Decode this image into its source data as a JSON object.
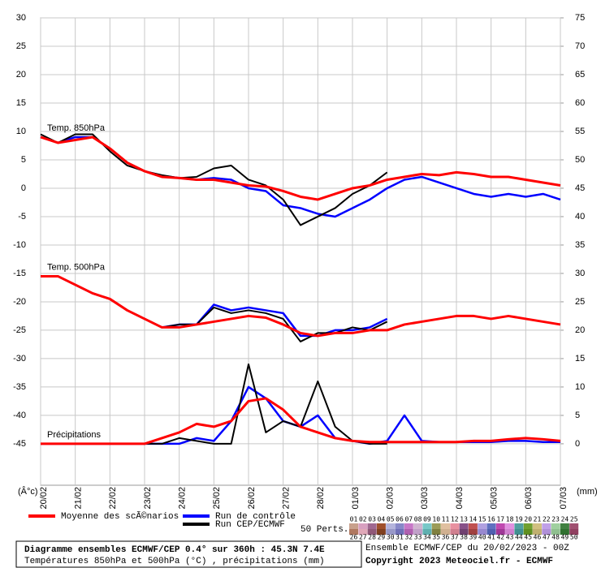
{
  "chart_data": {
    "type": "line",
    "xlim": [
      0,
      360
    ],
    "xticks": [
      {
        "value": 0,
        "label": "20/02"
      },
      {
        "value": 24,
        "label": "21/02"
      },
      {
        "value": 48,
        "label": "22/02"
      },
      {
        "value": 72,
        "label": "23/02"
      },
      {
        "value": 96,
        "label": "24/02"
      },
      {
        "value": 120,
        "label": "25/02"
      },
      {
        "value": 144,
        "label": "26/02"
      },
      {
        "value": 168,
        "label": "27/02"
      },
      {
        "value": 192,
        "label": "28/02"
      },
      {
        "value": 216,
        "label": "01/03"
      },
      {
        "value": 240,
        "label": "02/03"
      },
      {
        "value": 264,
        "label": "03/03"
      },
      {
        "value": 288,
        "label": "04/03"
      },
      {
        "value": 312,
        "label": "05/03"
      },
      {
        "value": 336,
        "label": "06/03"
      },
      {
        "value": 360,
        "label": "07/03"
      }
    ],
    "ylim": [
      -52.3,
      30
    ],
    "yticks": [
      -45,
      -40,
      -35,
      -30,
      -25,
      -20,
      -15,
      -10,
      -5,
      0,
      5,
      10,
      15,
      20,
      25,
      30
    ],
    "y2lim": [
      -7.3,
      75
    ],
    "y2ticks": [
      0,
      5,
      10,
      15,
      20,
      25,
      30,
      35,
      40,
      45,
      50,
      55,
      60,
      65,
      70,
      75
    ],
    "y_unit": "(Â°c)",
    "y2_unit": "(mm)",
    "grid": true,
    "x": [
      0,
      12,
      24,
      36,
      48,
      60,
      72,
      84,
      96,
      108,
      120,
      132,
      144,
      156,
      168,
      180,
      192,
      204,
      216,
      228,
      240,
      252,
      264,
      276,
      288,
      300,
      312,
      324,
      336,
      348,
      360
    ],
    "series": [
      {
        "name": "Moyenne des scÃ©narios",
        "color": "#ff0000"
      },
      {
        "name": "Run de contrôle",
        "color": "#0000ff"
      },
      {
        "name": "Run CEP/ECMWF",
        "color": "#000000"
      }
    ],
    "panels": [
      {
        "label": "Temp. 850hPa",
        "axis": "y",
        "values": [
          [
            9,
            8,
            8.5,
            9,
            7,
            4.5,
            3,
            2,
            1.8,
            1.5,
            1.5,
            1,
            0.5,
            0.3,
            -0.5,
            -1.5,
            -2,
            -1,
            0,
            0.5,
            1.5,
            2,
            2.5,
            2.3,
            2.8,
            2.5,
            2,
            2,
            1.5,
            1,
            0.5
          ],
          [
            9,
            8,
            9,
            9,
            7,
            4.5,
            3,
            2.2,
            1.8,
            1.5,
            1.8,
            1.5,
            0,
            -0.5,
            -3,
            -3.5,
            -4.5,
            -5,
            -3.5,
            -2,
            0,
            1.5,
            2,
            1,
            0,
            -1,
            -1.5,
            -1,
            -1.5,
            -1,
            -2
          ],
          [
            9.5,
            8,
            9.5,
            9.5,
            6.5,
            4,
            3,
            2.3,
            1.8,
            2,
            3.5,
            4,
            1.5,
            0.5,
            -2,
            -6.5,
            -5,
            -3.5,
            -1,
            0.5,
            2.8,
            null,
            null,
            null,
            null,
            null,
            null,
            null,
            null,
            null,
            null
          ]
        ]
      },
      {
        "label": "Temp. 500hPa",
        "axis": "y",
        "values": [
          [
            -15.5,
            -15.5,
            -17,
            -18.5,
            -19.5,
            -21.5,
            -23,
            -24.5,
            -24.5,
            -24,
            -23.5,
            -23,
            -22.5,
            -22.8,
            -24,
            -25.5,
            -26,
            -25.5,
            -25.5,
            -25,
            -25,
            -24,
            -23.5,
            -23,
            -22.5,
            -22.5,
            -23,
            -22.5,
            -23,
            -23.5,
            -24
          ],
          [
            -15.5,
            -15.5,
            -17,
            -18.5,
            -19.5,
            -21.5,
            -23,
            -24.5,
            -24,
            -24,
            -20.5,
            -21.5,
            -21,
            -21.5,
            -22,
            -26,
            -26,
            -25,
            -25,
            -24.5,
            -23,
            null,
            null,
            null,
            null,
            null,
            null,
            null,
            null,
            null,
            null
          ],
          [
            -15.5,
            -15.5,
            -17,
            -18.5,
            -19.5,
            -21.5,
            -23,
            -24.5,
            -24,
            -24,
            -21,
            -22,
            -21.5,
            -22,
            -23,
            -27,
            -25.5,
            -25.5,
            -24.5,
            -25,
            -23.5,
            null,
            null,
            null,
            null,
            null,
            null,
            null,
            null,
            null,
            null
          ]
        ]
      },
      {
        "label": "Précipitations",
        "axis": "y2",
        "values": [
          [
            0,
            0,
            0,
            0,
            0,
            0,
            0,
            1,
            2,
            3.5,
            3,
            4,
            7.5,
            8,
            6,
            3,
            2,
            1,
            0.5,
            0.3,
            0.3,
            0.3,
            0.3,
            0.3,
            0.3,
            0.5,
            0.5,
            0.8,
            1,
            0.8,
            0.5
          ],
          [
            0,
            0,
            0,
            0,
            0,
            0,
            0,
            0,
            0,
            1,
            0.5,
            4,
            10,
            8,
            4,
            3,
            5,
            1,
            0.5,
            0,
            0.5,
            5,
            0.5,
            0.3,
            0.3,
            0.3,
            0.3,
            0.5,
            0.5,
            0.3,
            0.3
          ],
          [
            0,
            0,
            0,
            0,
            0,
            0,
            0,
            0,
            1,
            0.5,
            0,
            0,
            14,
            2,
            4,
            3,
            11,
            3,
            0.5,
            0,
            0,
            null,
            null,
            null,
            null,
            null,
            null,
            null,
            null,
            null,
            null
          ]
        ]
      }
    ],
    "perturbations_label": "50 Perts.",
    "perturbations": [
      {
        "label": "01",
        "color": "#c8a08c"
      },
      {
        "label": "02",
        "color": "#d8a0c0"
      },
      {
        "label": "03",
        "color": "#a06890"
      },
      {
        "label": "04",
        "color": "#a0502c"
      },
      {
        "label": "05",
        "color": "#b4b4dc"
      },
      {
        "label": "06",
        "color": "#8888c8"
      },
      {
        "label": "07",
        "color": "#c878c8"
      },
      {
        "label": "08",
        "color": "#d0b4d0"
      },
      {
        "label": "09",
        "color": "#78c8c8"
      },
      {
        "label": "10",
        "color": "#9c9c58"
      },
      {
        "label": "11",
        "color": "#e0c0a0"
      },
      {
        "label": "12",
        "color": "#e890a0"
      },
      {
        "label": "13",
        "color": "#885088"
      },
      {
        "label": "14",
        "color": "#c05050"
      },
      {
        "label": "15",
        "color": "#b0a0e0"
      },
      {
        "label": "16",
        "color": "#6070c0"
      },
      {
        "label": "17",
        "color": "#c048b0"
      },
      {
        "label": "18",
        "color": "#e090e0"
      },
      {
        "label": "19",
        "color": "#50a0a0"
      },
      {
        "label": "20",
        "color": "#70a030"
      },
      {
        "label": "21",
        "color": "#d0c080"
      },
      {
        "label": "22",
        "color": "#c0a0e8"
      },
      {
        "label": "23",
        "color": "#a0d0a0"
      },
      {
        "label": "24",
        "color": "#408040"
      },
      {
        "label": "25",
        "color": "#a05070"
      },
      {
        "label": "26",
        "color": "#b07860"
      },
      {
        "label": "27",
        "color": "#e0a8b8"
      },
      {
        "label": "28",
        "color": "#905878"
      },
      {
        "label": "29",
        "color": "#804020"
      },
      {
        "label": "30",
        "color": "#9898c8"
      },
      {
        "label": "31",
        "color": "#7070b8"
      },
      {
        "label": "32",
        "color": "#b060b0"
      },
      {
        "label": "33",
        "color": "#c0a0c8"
      },
      {
        "label": "34",
        "color": "#60b0b0"
      },
      {
        "label": "35",
        "color": "#808040"
      },
      {
        "label": "36",
        "color": "#d0b090"
      },
      {
        "label": "37",
        "color": "#d08090"
      },
      {
        "label": "38",
        "color": "#704070"
      },
      {
        "label": "39",
        "color": "#a04040"
      },
      {
        "label": "40",
        "color": "#9888d0"
      },
      {
        "label": "41",
        "color": "#5060b0"
      },
      {
        "label": "42",
        "color": "#a03898"
      },
      {
        "label": "43",
        "color": "#d080d0"
      },
      {
        "label": "44",
        "color": "#409090"
      },
      {
        "label": "45",
        "color": "#609020"
      },
      {
        "label": "46",
        "color": "#c0b070"
      },
      {
        "label": "47",
        "color": "#b090d8"
      },
      {
        "label": "48",
        "color": "#90c090"
      },
      {
        "label": "49",
        "color": "#307030"
      },
      {
        "label": "50",
        "color": "#904060"
      }
    ],
    "title": "Diagramme ensembles ECMWF/CEP 0.4° sur 360h : 45.3N 7.4E",
    "subtitle": "Températures 850hPa et 500hPa (°C) , précipitations (mm)",
    "run_info": "Ensemble ECMWF/CEP du 20/02/2023 - 00Z",
    "copyright": "Copyright 2023 Meteociel.fr - ECMWF"
  }
}
